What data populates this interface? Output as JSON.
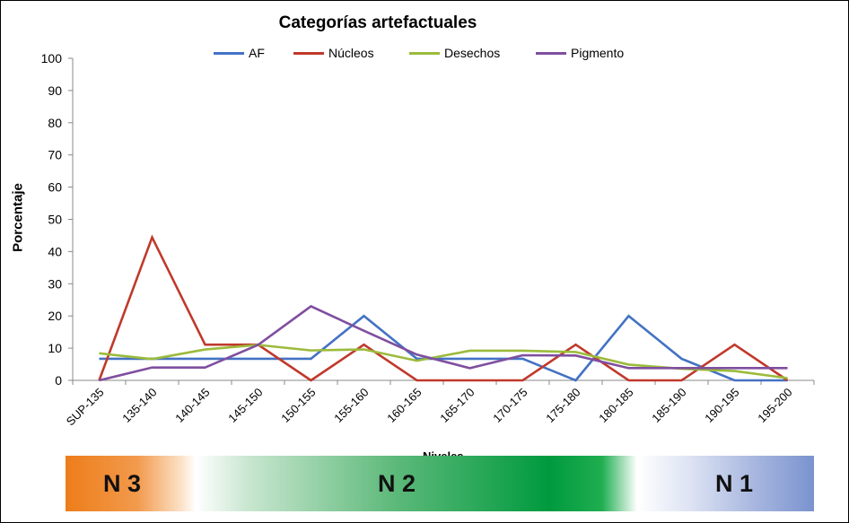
{
  "chart_data": {
    "type": "line",
    "title": "Categorías artefactuales",
    "ylabel": "Porcentaje",
    "xlabel": "Niveles",
    "ylim": [
      0,
      100
    ],
    "yticks": [
      0,
      10,
      20,
      30,
      40,
      50,
      60,
      70,
      80,
      90,
      100
    ],
    "categories": [
      "SUP-135",
      "135-140",
      "140-145",
      "145-150",
      "150-155",
      "155-160",
      "160-165",
      "165-170",
      "170-175",
      "175-180",
      "180-185",
      "185-190",
      "190-195",
      "195-200"
    ],
    "legend_position": "top",
    "grid": false,
    "series": [
      {
        "name": "AF",
        "color": "#4472C4",
        "values": [
          6.7,
          6.7,
          6.7,
          6.7,
          6.7,
          20,
          6.7,
          6.7,
          6.7,
          0,
          20,
          6.7,
          0,
          0
        ]
      },
      {
        "name": "Núcleos",
        "color": "#C0392B",
        "values": [
          0,
          44.4,
          11.1,
          11.1,
          0,
          11.1,
          0,
          0,
          0,
          11.1,
          0,
          0,
          11.1,
          0
        ]
      },
      {
        "name": "Desechos",
        "color": "#9BBB3B",
        "values": [
          8.4,
          6.6,
          9.6,
          11,
          9.3,
          9.6,
          6.1,
          9.2,
          9.2,
          8.8,
          4.9,
          3.6,
          2.9,
          0.7
        ]
      },
      {
        "name": "Pigmento",
        "color": "#7F4F9F",
        "values": [
          0,
          4,
          4,
          11,
          23,
          15.4,
          8,
          3.8,
          7.8,
          7.7,
          3.8,
          3.8,
          3.8,
          3.8
        ]
      }
    ]
  },
  "bands": [
    {
      "label": "N 3"
    },
    {
      "label": "N 2"
    },
    {
      "label": "N 1"
    }
  ]
}
